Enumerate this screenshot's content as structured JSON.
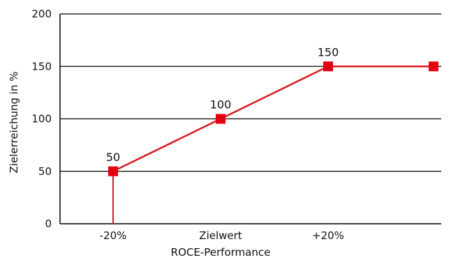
{
  "chart_data": {
    "type": "line",
    "title": "",
    "xlabel": "ROCE-Performance",
    "ylabel": "Zielerreichung in %",
    "ylim": [
      0,
      200
    ],
    "yticks": [
      0,
      50,
      100,
      150,
      200
    ],
    "categories": [
      "-20%",
      "Zielwert",
      "+20%",
      ""
    ],
    "series": [
      {
        "values": [
          50,
          100,
          150,
          150
        ],
        "data_labels": [
          "50",
          "100",
          "150",
          ""
        ]
      }
    ],
    "drop_line": {
      "category_index": 0,
      "from": 0,
      "to": 50
    },
    "grid": true,
    "legend": "none",
    "colors": {
      "line": "#d7191f",
      "marker": "#e3000f",
      "grid": "#000000",
      "axis": "#000000",
      "text": "#111111"
    }
  }
}
